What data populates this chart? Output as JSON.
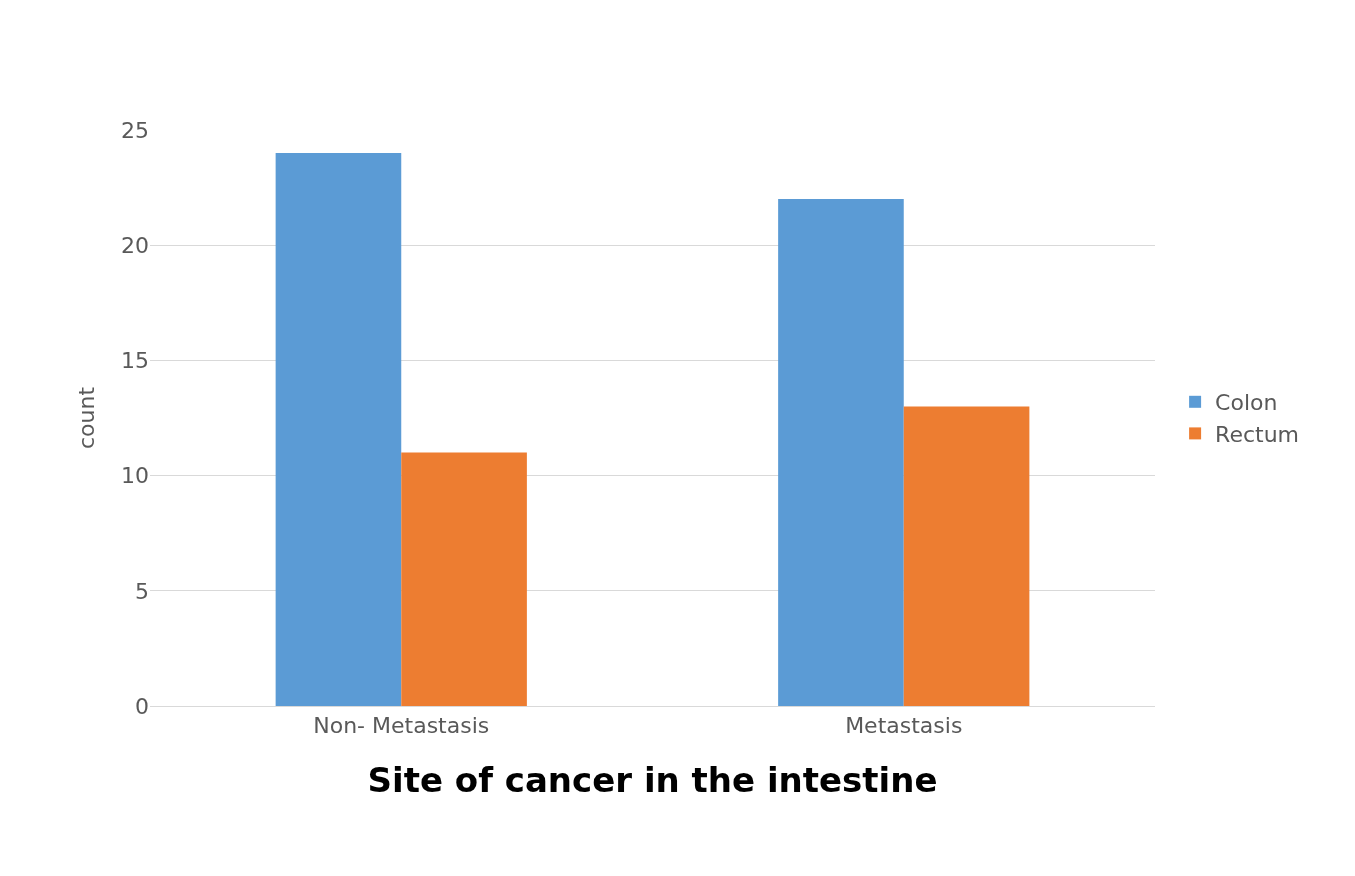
{
  "chart_data": {
    "type": "bar",
    "xlabel": "Site of cancer in the intestine",
    "ylabel": "count",
    "categories": [
      "Non- Metastasis",
      "Metastasis"
    ],
    "series": [
      {
        "name": "Colon",
        "color": "#5b9bd5",
        "values": [
          24,
          22
        ]
      },
      {
        "name": "Rectum",
        "color": "#ed7d31",
        "values": [
          11,
          13
        ]
      }
    ],
    "ylim": [
      0,
      25
    ],
    "yticks": [
      0,
      5,
      10,
      15,
      20,
      25
    ],
    "grid": "y",
    "legend": "right"
  }
}
